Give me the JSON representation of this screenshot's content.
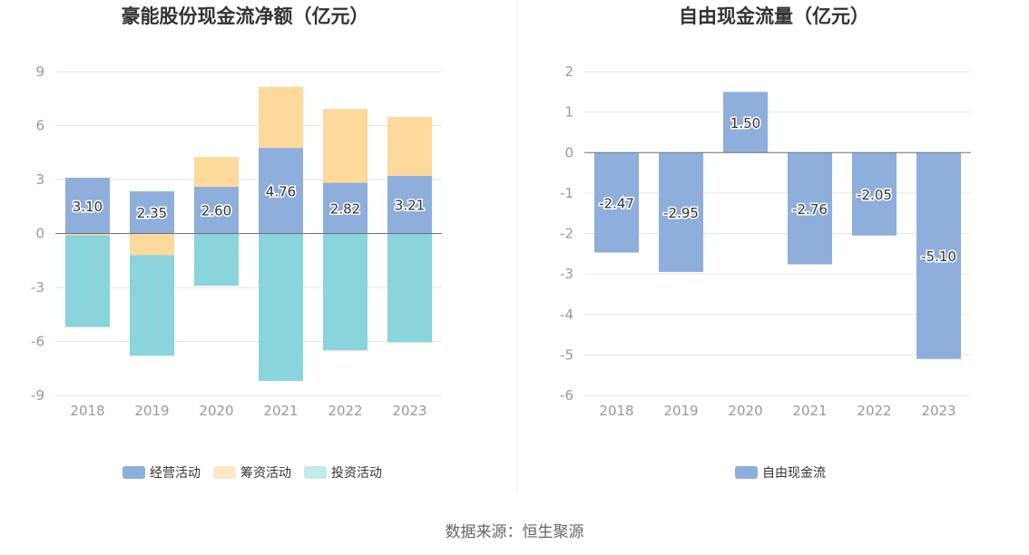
{
  "source_note": "数据来源：恒生聚源",
  "chart_data": [
    {
      "type": "bar",
      "stacked": true,
      "title": "豪能股份现金流净额（亿元）",
      "categories": [
        "2018",
        "2019",
        "2020",
        "2021",
        "2022",
        "2023"
      ],
      "ylim": [
        -9,
        9
      ],
      "yticks": [
        9,
        6,
        3,
        0,
        -3,
        -6,
        -9
      ],
      "grid": true,
      "legend_position": "bottom",
      "series": [
        {
          "name": "经营活动",
          "color": "#8eaedc",
          "values": [
            3.1,
            2.35,
            2.6,
            4.76,
            2.82,
            3.21
          ],
          "show_labels": true
        },
        {
          "name": "筹资活动",
          "color": "#fdd99b",
          "values": [
            -0.1,
            -1.2,
            1.65,
            3.4,
            4.1,
            3.28
          ],
          "show_labels": false
        },
        {
          "name": "投资活动",
          "color": "#89d5db",
          "values": [
            -5.1,
            -5.6,
            -2.9,
            -8.2,
            -6.5,
            -6.05
          ],
          "show_labels": false
        }
      ],
      "legend_swatch_colors": [
        "#8eaedc",
        "#fde7c4",
        "#c4e9ec"
      ]
    },
    {
      "type": "bar",
      "title": "自由现金流量（亿元）",
      "categories": [
        "2018",
        "2019",
        "2020",
        "2021",
        "2022",
        "2023"
      ],
      "ylim": [
        -6,
        2
      ],
      "yticks": [
        2,
        1,
        0,
        -1,
        -2,
        -3,
        -4,
        -5,
        -6
      ],
      "grid": true,
      "legend_position": "bottom",
      "series": [
        {
          "name": "自由现金流",
          "color": "#8eaedc",
          "values": [
            -2.47,
            -2.95,
            1.5,
            -2.76,
            -2.05,
            -5.1
          ],
          "show_labels": true
        }
      ],
      "legend_swatch_colors": [
        "#8eaedc"
      ]
    }
  ]
}
